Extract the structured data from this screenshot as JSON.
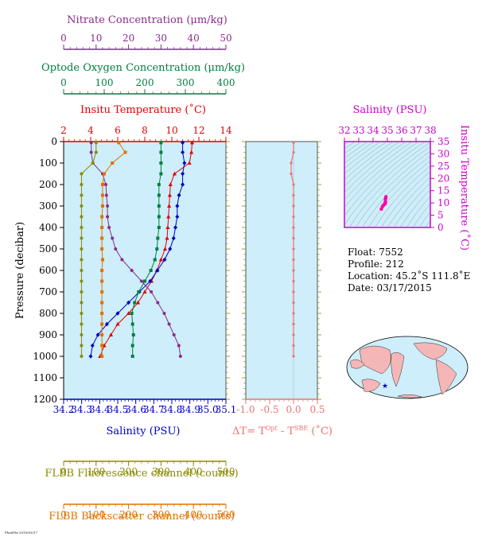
{
  "axes": {
    "nitrate": {
      "label": "Nitrate Concentration (μm/kg)",
      "ticks": [
        "0",
        "10",
        "20",
        "30",
        "40",
        "50"
      ],
      "range": [
        0,
        50
      ],
      "color": "#8b2b8b"
    },
    "oxygen": {
      "label": "Optode Oxygen Concentration (μm/kg)",
      "ticks": [
        "0",
        "100",
        "200",
        "300",
        "400"
      ],
      "range": [
        0,
        400
      ],
      "color": "#008040"
    },
    "temperature": {
      "label": "Insitu Temperature (˚C)",
      "ticks": [
        "2",
        "4",
        "6",
        "8",
        "10",
        "12",
        "14"
      ],
      "range": [
        2,
        14
      ],
      "color": "#e00000"
    },
    "salinity": {
      "label": "Salinity (PSU)",
      "ticks": [
        "34.2",
        "34.3",
        "34.4",
        "34.5",
        "34.6",
        "34.7",
        "34.8",
        "34.9",
        "35.0",
        "35.1"
      ],
      "range": [
        34.2,
        35.1
      ],
      "color": "#0000c0"
    },
    "pressure": {
      "label": "Pressure (decibar)",
      "ticks": [
        "0",
        "100",
        "200",
        "300",
        "400",
        "500",
        "600",
        "700",
        "800",
        "900",
        "1000",
        "1100",
        "1200"
      ],
      "range": [
        0,
        1200
      ]
    },
    "fluorescence": {
      "label": "FLBB Fluorescence channel (counts)",
      "ticks": [
        "0",
        "100",
        "200",
        "300",
        "400",
        "500"
      ],
      "range": [
        0,
        500
      ],
      "color": "#8b8b00"
    },
    "backscatter": {
      "label": "FLBB Backscatter channel (counts)",
      "ticks": [
        "0",
        "100",
        "200",
        "300",
        "400",
        "500"
      ],
      "range": [
        0,
        500
      ],
      "color": "#e07000"
    },
    "delta_t": {
      "label_main": "ΔT= T",
      "label_sup1": "Opt",
      "label_mid": " - T",
      "label_sup2": "SBE",
      "label_end": " (˚C)",
      "ticks": [
        "-1.0",
        "-0.5",
        "0.0",
        "0.5"
      ],
      "range": [
        -1.0,
        0.5
      ],
      "color": "#f07070"
    },
    "ts_salinity": {
      "label": "Salinity (PSU)",
      "ticks": [
        "32",
        "33",
        "34",
        "35",
        "36",
        "37",
        "38"
      ],
      "range": [
        32,
        38
      ],
      "color": "#cc00cc"
    },
    "ts_temperature": {
      "label": "Insitu Temperature (˚C)",
      "ticks": [
        "0",
        "5",
        "10",
        "15",
        "20",
        "25",
        "30",
        "35"
      ],
      "range": [
        0,
        35
      ],
      "color": "#cc00cc"
    }
  },
  "info": {
    "float": "Float:  7552",
    "profile": "Profile:  212",
    "location": "Location:  45.2˚S  111.8˚E",
    "date": "Date:  03/17/2015"
  },
  "footer": "FloatViz 2015/03/17",
  "chart_data": {
    "type": "line",
    "pressure": [
      5,
      50,
      100,
      150,
      200,
      250,
      300,
      350,
      400,
      450,
      500,
      550,
      600,
      650,
      700,
      750,
      800,
      850,
      900,
      950,
      1000
    ],
    "series": [
      {
        "name": "Insitu Temperature",
        "axis": "temperature",
        "values": [
          11.5,
          11.45,
          11.3,
          10.2,
          9.9,
          9.85,
          9.8,
          9.75,
          9.7,
          9.65,
          9.5,
          9.2,
          8.9,
          8.5,
          8.0,
          7.5,
          6.8,
          6.0,
          5.5,
          5.0,
          4.7
        ]
      },
      {
        "name": "Salinity",
        "axis": "salinity",
        "values": [
          34.86,
          34.86,
          34.87,
          34.86,
          34.86,
          34.84,
          34.83,
          34.83,
          34.82,
          34.81,
          34.79,
          34.76,
          34.72,
          34.68,
          34.62,
          34.56,
          34.5,
          34.44,
          34.39,
          34.36,
          34.35
        ]
      },
      {
        "name": "Optode Oxygen Concentration",
        "axis": "oxygen",
        "values": [
          240,
          240,
          240,
          240,
          235,
          235,
          235,
          235,
          235,
          232,
          230,
          225,
          215,
          200,
          185,
          175,
          168,
          170,
          172,
          170,
          170
        ]
      },
      {
        "name": "Nitrate Concentration",
        "axis": "nitrate",
        "values": [
          8.5,
          8.5,
          9.0,
          12.0,
          13.0,
          13.2,
          13.5,
          13.5,
          14.0,
          15.0,
          16.0,
          18.0,
          21.0,
          24.0,
          27.0,
          29.0,
          31.0,
          32.5,
          34.0,
          35.5,
          36.0
        ]
      },
      {
        "name": "FLBB Fluorescence channel",
        "axis": "fluorescence",
        "values": [
          100,
          100,
          90,
          55,
          55,
          55,
          55,
          55,
          55,
          55,
          55,
          55,
          55,
          55,
          55,
          55,
          55,
          55,
          55,
          55,
          55
        ]
      },
      {
        "name": "FLBB Backscatter channel",
        "axis": "backscatter",
        "values": [
          170,
          190,
          150,
          125,
          120,
          120,
          120,
          118,
          118,
          118,
          118,
          120,
          118,
          118,
          118,
          118,
          118,
          118,
          118,
          118,
          118
        ]
      },
      {
        "name": "ΔT",
        "axis": "delta_t",
        "values": [
          0.0,
          0.0,
          -0.05,
          -0.05,
          0.0,
          0.0,
          0.0,
          0.0,
          0.0,
          0.0,
          0.0,
          0.0,
          0.0,
          0.0,
          0.0,
          0.0,
          0.0,
          0.0,
          0.0,
          0.0,
          0.0
        ]
      }
    ],
    "ts_points": {
      "salinity": [
        34.9,
        34.88,
        34.86,
        34.86,
        34.85,
        34.84,
        34.82,
        34.78,
        34.72,
        34.65,
        34.58
      ],
      "temperature": [
        12.5,
        12.0,
        11.5,
        10.5,
        10.0,
        9.8,
        9.6,
        9.4,
        9.0,
        8.5,
        7.5
      ]
    }
  }
}
